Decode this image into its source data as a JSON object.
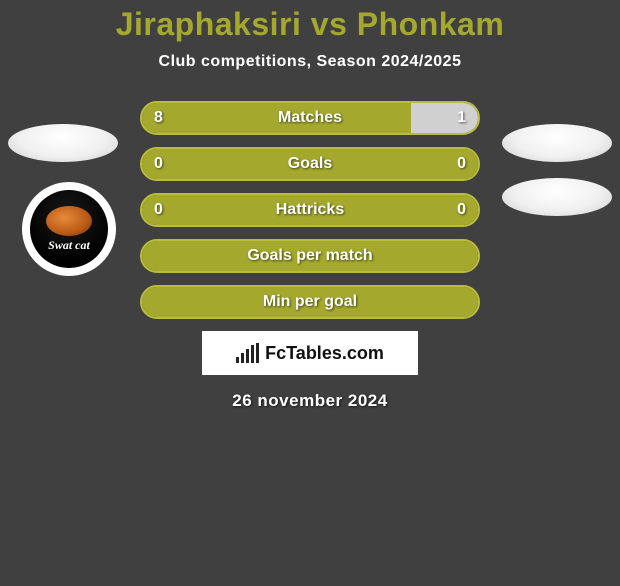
{
  "colors": {
    "background": "#404040",
    "accent": "#a4a92e",
    "accent_border": "#b9bd3a",
    "right_fill": "#d0d0d0",
    "text": "#ffffff",
    "watermark_bg": "#ffffff",
    "watermark_text": "#111111"
  },
  "title": "Jiraphaksiri vs Phonkam",
  "subtitle": "Club competitions, Season 2024/2025",
  "club_badge": {
    "top_text": "",
    "name": "Swat cat"
  },
  "rows": [
    {
      "label": "Matches",
      "left": "8",
      "right": "1",
      "left_pct": 80,
      "right_pct": 20
    },
    {
      "label": "Goals",
      "left": "0",
      "right": "0",
      "left_pct": 100,
      "right_pct": 0
    },
    {
      "label": "Hattricks",
      "left": "0",
      "right": "0",
      "left_pct": 100,
      "right_pct": 0
    },
    {
      "label": "Goals per match",
      "left": "",
      "right": "",
      "left_pct": 100,
      "right_pct": 0
    },
    {
      "label": "Min per goal",
      "left": "",
      "right": "",
      "left_pct": 100,
      "right_pct": 0
    }
  ],
  "watermark": "FcTables.com",
  "date": "26 november 2024"
}
